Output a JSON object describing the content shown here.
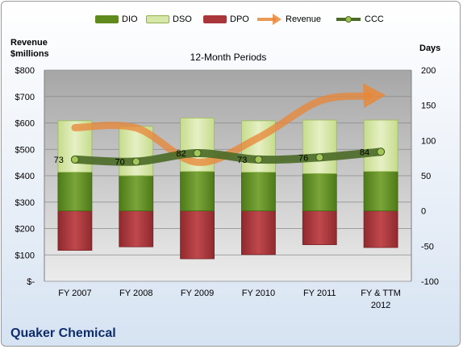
{
  "chart_data": {
    "type": "bar",
    "subtitle": "12-Month Periods",
    "company": "Quaker Chemical",
    "left_axis": {
      "label_line1": "Revenue",
      "label_line2": "$millions",
      "ylim": [
        0,
        800
      ],
      "ticks": [
        0,
        100,
        200,
        300,
        400,
        500,
        600,
        700,
        800
      ],
      "tick_labels": [
        "$-",
        "$100",
        "$200",
        "$300",
        "$400",
        "$500",
        "$600",
        "$700",
        "$800"
      ]
    },
    "right_axis": {
      "label": "Days",
      "ylim": [
        -100,
        200
      ],
      "ticks": [
        -100,
        -50,
        0,
        50,
        100,
        150,
        200
      ],
      "tick_labels": [
        "-100",
        "-50",
        "0",
        "50",
        "100",
        "150",
        "200"
      ]
    },
    "categories": [
      "FY 2007",
      "FY 2008",
      "FY 2009",
      "FY 2010",
      "FY 2011",
      "FY & TTM 2012"
    ],
    "series": [
      {
        "name": "DIO",
        "axis": "right",
        "color": "#5f8a1e",
        "values": [
          55,
          50,
          56,
          55,
          53,
          56
        ]
      },
      {
        "name": "DSO",
        "axis": "right",
        "color": "#d6e7a7",
        "values": [
          73,
          70,
          76,
          73,
          76,
          73
        ]
      },
      {
        "name": "DPO",
        "axis": "right",
        "color": "#a8363a",
        "values": [
          -56,
          -51,
          -68,
          -62,
          -48,
          -52
        ]
      },
      {
        "name": "Revenue",
        "axis": "left",
        "color": "#e8883a",
        "values": [
          582,
          581,
          451,
          544,
          683,
          708
        ]
      },
      {
        "name": "CCC",
        "axis": "right",
        "color": "#4a6a26",
        "values": [
          73,
          70,
          82,
          73,
          76,
          84
        ]
      }
    ],
    "ccc_labels": [
      "73",
      "70",
      "82",
      "73",
      "76",
      "84"
    ],
    "grid": true,
    "legend_position": "top"
  }
}
